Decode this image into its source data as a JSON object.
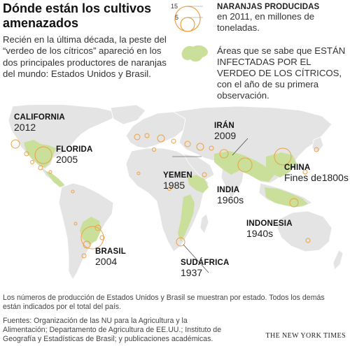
{
  "title": "Dónde están los cultivos amenazados",
  "intro": "Recién en la última década, la peste del “verdeo de los cítricos” apareció en los dos principales productores de naranjas del mundo: Estados Unidos y Brasil.",
  "legend": {
    "size_labels": [
      "15",
      "5"
    ],
    "oranges_heading": "NARANJAS PRODUCIDAS",
    "oranges_text": "en 2011, en millones de toneladas.",
    "green_text": "Áreas que se sabe que ESTÁN INFECTADAS POR EL VERDEO DE LOS CÍTRICOS, con el año de su primera observación."
  },
  "regions": [
    {
      "name": "CALIFORNIA",
      "year": "2012"
    },
    {
      "name": "FLORIDA",
      "year": "2005"
    },
    {
      "name": "BRASIL",
      "year": "2004"
    },
    {
      "name": "IRÁN",
      "year": "2009"
    },
    {
      "name": "YEMEN",
      "year": "1985"
    },
    {
      "name": "INDIA",
      "year": "1960s"
    },
    {
      "name": "CHINA",
      "year": "Fines de1800s"
    },
    {
      "name": "INDONESIA",
      "year": "1940s"
    },
    {
      "name": "SUDÁFRICA",
      "year": "1937"
    }
  ],
  "footnote": "Los números de producción de Estados Unidos y Brasil se muestran por estado. Todos los demás están indicados por el total del país.",
  "sources": "Fuentes: Organización de las NU para la Agricultura y la Alimentación; Departamento de Agricultura de EE.UU.; Instituto de Geografía y Estadísticas de Brasil; y publicaciones académicas.",
  "credit": "THE NEW YORK TIMES",
  "colors": {
    "orange": "#f0a040",
    "green": "#c9df9a",
    "land": "#e4e4e4",
    "border": "#ffffff"
  }
}
